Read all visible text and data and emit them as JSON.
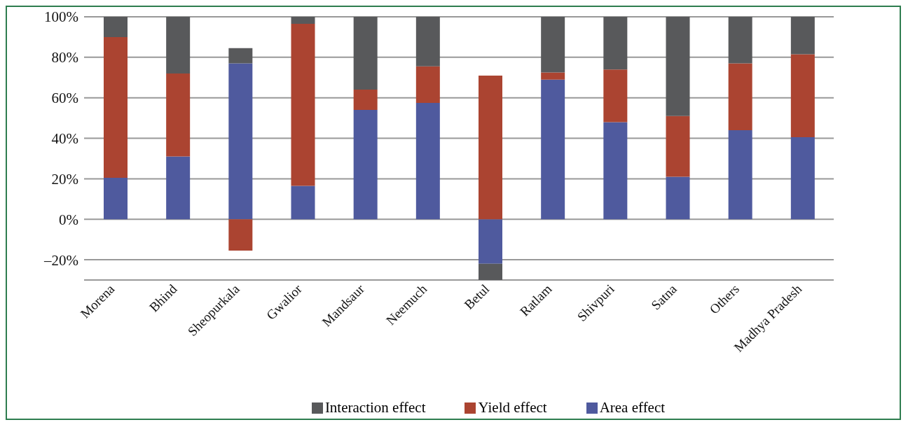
{
  "chart_data": {
    "type": "bar",
    "stacked": true,
    "categories": [
      "Morena",
      "Bhind",
      "Sheopurkala",
      "Gwalior",
      "Mandsaur",
      "Neemuch",
      "Betul",
      "Ratlam",
      "Shivpuri",
      "Satna",
      "Others",
      "Madhya Pradesh"
    ],
    "series": [
      {
        "name": "Area effect",
        "color": "#4f5a9e",
        "values": [
          20.5,
          31,
          77,
          16.5,
          54,
          57.5,
          -22,
          69,
          48,
          21,
          44,
          40.5
        ]
      },
      {
        "name": "Yield effect",
        "color": "#ab4431",
        "values": [
          69.5,
          41,
          -15.5,
          80,
          10,
          18,
          71,
          3.5,
          26,
          30,
          33,
          41
        ]
      },
      {
        "name": "Interaction effect",
        "color": "#58595b",
        "values": [
          10,
          28,
          7.5,
          3.5,
          36,
          24.5,
          -8,
          27.5,
          26,
          49,
          23,
          18.5
        ]
      }
    ],
    "ylim": [
      -30,
      100
    ],
    "yticks": [
      {
        "value": -20,
        "label": "–20%"
      },
      {
        "value": 0,
        "label": "0%"
      },
      {
        "value": 20,
        "label": "20%"
      },
      {
        "value": 40,
        "label": "40%"
      },
      {
        "value": 60,
        "label": "60%"
      },
      {
        "value": 80,
        "label": "80%"
      },
      {
        "value": 100,
        "label": "100%"
      }
    ],
    "grid": "y",
    "legend": "bottom"
  }
}
